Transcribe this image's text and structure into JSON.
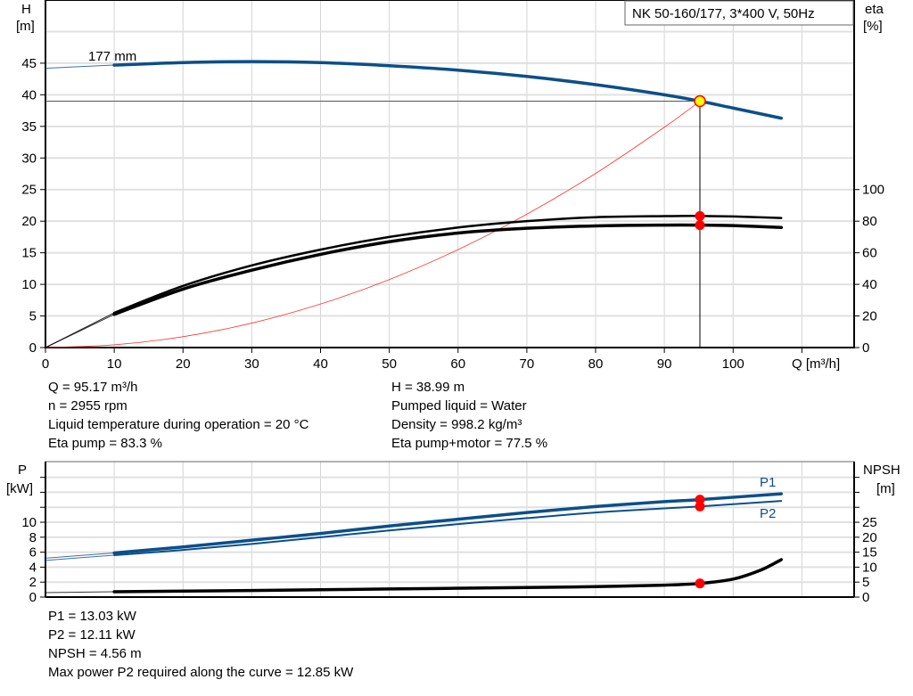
{
  "chart_data": [
    {
      "type": "line",
      "title": "NK 50-160/177, 3*400 V, 50Hz",
      "xlabel": "Q [m³/h]",
      "ylabel": "H\n[m]",
      "y2label": "eta\n[%]",
      "xlim": [
        0,
        117.6
      ],
      "ylim": [
        0,
        55
      ],
      "y2lim": [
        0,
        220
      ],
      "x_ticks": [
        0,
        10,
        20,
        30,
        40,
        50,
        60,
        70,
        80,
        90,
        100
      ],
      "y_ticks": [
        0,
        5,
        10,
        15,
        20,
        25,
        30,
        35,
        40,
        45
      ],
      "y2_ticks": [
        0,
        20,
        40,
        60,
        80,
        100
      ],
      "grid": true,
      "curve_label": "177 mm",
      "series": [
        {
          "key": "H",
          "axis": "left",
          "color": "#0b4f8a",
          "x": [
            0,
            10,
            20,
            30,
            40,
            50,
            60,
            70,
            80,
            90,
            95.17,
            100,
            107
          ],
          "y": [
            44.2,
            44.7,
            45.1,
            45.25,
            45.1,
            44.6,
            43.9,
            42.9,
            41.6,
            40.0,
            38.99,
            37.9,
            36.3
          ]
        },
        {
          "key": "eta_pump",
          "axis": "right",
          "color": "#000000",
          "x": [
            0,
            10,
            20,
            30,
            40,
            50,
            60,
            70,
            80,
            90,
            95.17,
            100,
            107
          ],
          "y": [
            0,
            22,
            39,
            52,
            62,
            70,
            76,
            80,
            82.5,
            83.2,
            83.3,
            83,
            82
          ]
        },
        {
          "key": "eta_pump_motor",
          "axis": "right",
          "color": "#000000",
          "x": [
            0,
            10,
            20,
            30,
            40,
            50,
            60,
            70,
            80,
            90,
            95.17,
            100,
            107
          ],
          "y": [
            0,
            21,
            37,
            49,
            59,
            67,
            72.5,
            75.5,
            77,
            77.5,
            77.5,
            77.2,
            76
          ]
        },
        {
          "key": "system",
          "axis": "left",
          "color": "#ff0000",
          "x": [
            0,
            10,
            20,
            30,
            40,
            50,
            60,
            70,
            80,
            90,
            95.17
          ],
          "y": [
            0,
            0.43,
            1.72,
            3.87,
            6.89,
            10.76,
            15.5,
            21.1,
            27.55,
            34.87,
            38.99
          ]
        }
      ],
      "duty_point": {
        "Q": 95.17,
        "H": 38.99,
        "eta_pump": 83.3,
        "eta_pump_motor": 77.5
      }
    },
    {
      "type": "line",
      "ylabel": "P\n[kW]",
      "y2label": "NPSH\n[m]",
      "xlim": [
        0,
        117.6
      ],
      "ylim": [
        0,
        18.1
      ],
      "y2lim": [
        0,
        45.25
      ],
      "y_ticks": [
        0,
        2,
        4,
        6,
        8,
        10
      ],
      "y2_ticks": [
        0,
        5,
        10,
        15,
        20,
        25
      ],
      "grid": true,
      "series": [
        {
          "name": "P1",
          "axis": "left",
          "color": "#0b4f8a",
          "x": [
            0,
            10,
            20,
            30,
            40,
            50,
            60,
            70,
            80,
            90,
            95.17,
            107
          ],
          "y": [
            5.2,
            5.9,
            6.7,
            7.6,
            8.5,
            9.5,
            10.4,
            11.3,
            12.1,
            12.75,
            13.03,
            13.8
          ]
        },
        {
          "name": "P2",
          "axis": "left",
          "color": "#0b4f8a",
          "x": [
            0,
            10,
            20,
            30,
            40,
            50,
            60,
            70,
            80,
            90,
            95.17,
            107
          ],
          "y": [
            4.9,
            5.6,
            6.3,
            7.1,
            8.0,
            8.9,
            9.75,
            10.55,
            11.3,
            11.85,
            12.11,
            12.85
          ]
        },
        {
          "key": "NPSH",
          "axis": "right",
          "color": "#000000",
          "x": [
            0,
            10,
            30,
            50,
            70,
            80,
            90,
            95.17,
            100,
            104,
            107
          ],
          "y": [
            1.5,
            1.8,
            2.2,
            2.7,
            3.2,
            3.5,
            4.0,
            4.56,
            6.0,
            9.0,
            12.5
          ]
        }
      ],
      "duty_point": {
        "Q": 95.17,
        "P1": 13.03,
        "P2": 12.11,
        "NPSH": 4.56
      }
    }
  ],
  "info_top_left": [
    "Q = 95.17 m³/h",
    "n = 2955 rpm",
    "Liquid temperature during operation = 20 °C",
    "Eta pump = 83.3 %"
  ],
  "info_top_right": [
    "H = 38.99 m",
    "Pumped liquid = Water",
    "Density = 998.2 kg/m³",
    "Eta pump+motor = 77.5 %"
  ],
  "info_bottom": [
    "P1 = 13.03 kW",
    "P2 = 12.11 kW",
    "NPSH = 4.56 m",
    "Max power P2 required along the curve = 12.85 kW"
  ]
}
